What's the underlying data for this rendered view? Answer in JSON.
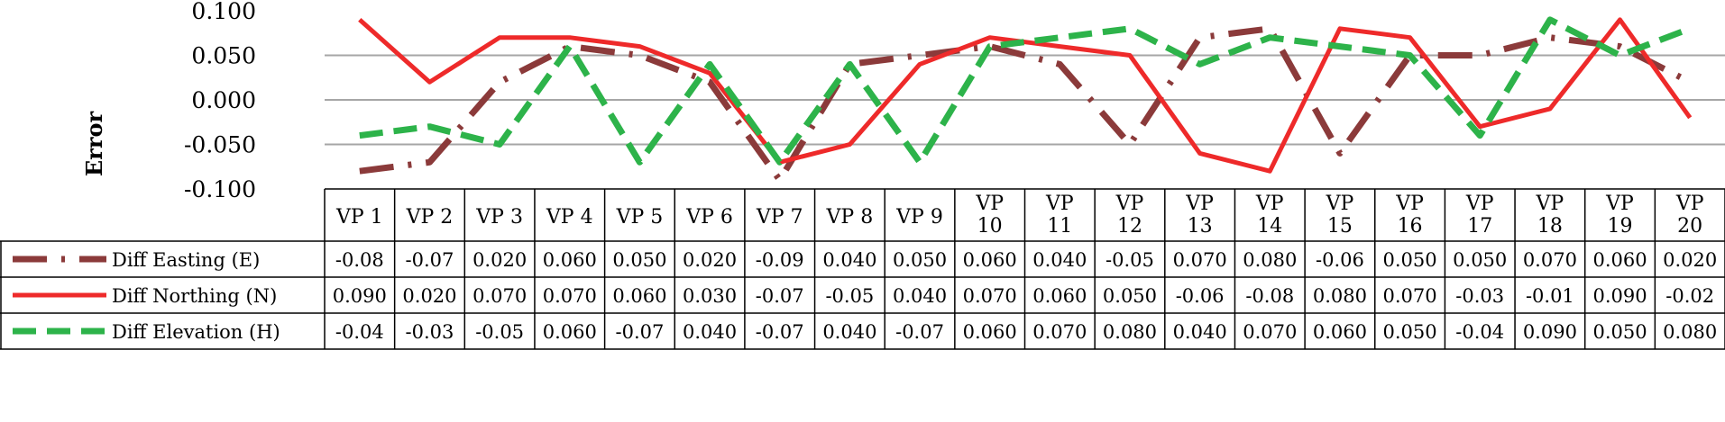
{
  "chart_data": {
    "type": "line",
    "title": "",
    "xlabel": "",
    "ylabel": "Error",
    "ylim": [
      -0.1,
      0.1
    ],
    "yticks": [
      "0.100",
      "0.050",
      "0.000",
      "-0.050",
      "-0.100"
    ],
    "grid": true,
    "legend": "data-table",
    "categories": [
      [
        "VP 1"
      ],
      [
        "VP 2"
      ],
      [
        "VP 3"
      ],
      [
        "VP 4"
      ],
      [
        "VP 5"
      ],
      [
        "VP 6"
      ],
      [
        "VP 7"
      ],
      [
        "VP 8"
      ],
      [
        "VP 9"
      ],
      [
        "VP",
        "10"
      ],
      [
        "VP",
        "11"
      ],
      [
        "VP",
        "12"
      ],
      [
        "VP",
        "13"
      ],
      [
        "VP",
        "14"
      ],
      [
        "VP",
        "15"
      ],
      [
        "VP",
        "16"
      ],
      [
        "VP",
        "17"
      ],
      [
        "VP",
        "18"
      ],
      [
        "VP",
        "19"
      ],
      [
        "VP",
        "20"
      ]
    ],
    "series": [
      {
        "name": "Diff Easting (E)",
        "color": "#8b3a3a",
        "style": "dash-dot",
        "values": [
          -0.08,
          -0.07,
          0.02,
          0.06,
          0.05,
          0.02,
          -0.09,
          0.04,
          0.05,
          0.06,
          0.04,
          -0.05,
          0.07,
          0.08,
          -0.06,
          0.05,
          0.05,
          0.07,
          0.06,
          0.02
        ],
        "labels": [
          "-0.08",
          "-0.07",
          "0.020",
          "0.060",
          "0.050",
          "0.020",
          "-0.09",
          "0.040",
          "0.050",
          "0.060",
          "0.040",
          "-0.05",
          "0.070",
          "0.080",
          "-0.06",
          "0.050",
          "0.050",
          "0.070",
          "0.060",
          "0.020"
        ]
      },
      {
        "name": "Diff Northing (N)",
        "color": "#ee2a2a",
        "style": "solid",
        "values": [
          0.09,
          0.02,
          0.07,
          0.07,
          0.06,
          0.03,
          -0.07,
          -0.05,
          0.04,
          0.07,
          0.06,
          0.05,
          -0.06,
          -0.08,
          0.08,
          0.07,
          -0.03,
          -0.01,
          0.09,
          -0.02
        ],
        "labels": [
          "0.090",
          "0.020",
          "0.070",
          "0.070",
          "0.060",
          "0.030",
          "-0.07",
          "-0.05",
          "0.040",
          "0.070",
          "0.060",
          "0.050",
          "-0.06",
          "-0.08",
          "0.080",
          "0.070",
          "-0.03",
          "-0.01",
          "0.090",
          "-0.02"
        ]
      },
      {
        "name": "Diff Elevation (H)",
        "color": "#2db34a",
        "style": "dashed",
        "values": [
          -0.04,
          -0.03,
          -0.05,
          0.06,
          -0.07,
          0.04,
          -0.07,
          0.04,
          -0.07,
          0.06,
          0.07,
          0.08,
          0.04,
          0.07,
          0.06,
          0.05,
          -0.04,
          0.09,
          0.05,
          0.08
        ],
        "labels": [
          "-0.04",
          "-0.03",
          "-0.05",
          "0.060",
          "-0.07",
          "0.040",
          "-0.07",
          "0.040",
          "-0.07",
          "0.060",
          "0.070",
          "0.080",
          "0.040",
          "0.070",
          "0.060",
          "0.050",
          "-0.04",
          "0.090",
          "0.050",
          "0.080"
        ]
      }
    ]
  }
}
